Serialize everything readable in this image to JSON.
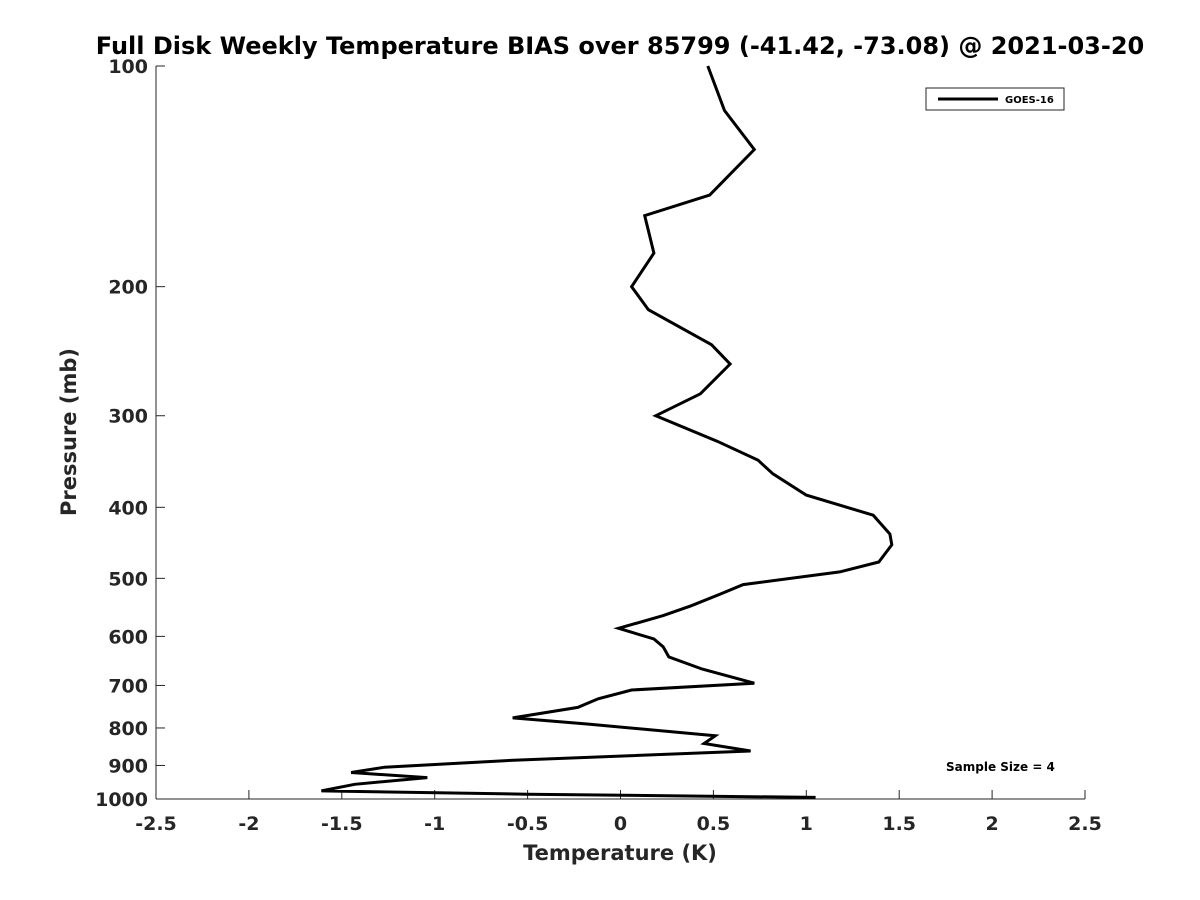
{
  "chart_data": {
    "type": "line",
    "title": "Full Disk Weekly Temperature BIAS over 85799 (-41.42, -73.08) @ 2021-03-20",
    "xlabel": "Temperature (K)",
    "ylabel": "Pressure (mb)",
    "xlim": [
      -2.5,
      2.5
    ],
    "ylim": [
      100,
      1000
    ],
    "y_scale": "log",
    "y_reversed": true,
    "x_ticks": [
      -2.5,
      -2,
      -1.5,
      -1,
      -0.5,
      0,
      0.5,
      1,
      1.5,
      2,
      2.5
    ],
    "x_tick_labels": [
      "-2.5",
      "-2",
      "-1.5",
      "-1",
      "-0.5",
      "0",
      "0.5",
      "1",
      "1.5",
      "2",
      "2.5"
    ],
    "y_ticks": [
      100,
      200,
      300,
      400,
      500,
      600,
      700,
      800,
      900,
      1000
    ],
    "y_tick_labels": [
      "100",
      "200",
      "300",
      "400",
      "500",
      "600",
      "700",
      "800",
      "900",
      "1000"
    ],
    "grid": false,
    "legend_position": "top-right",
    "series": [
      {
        "name": "GOES-16",
        "color": "#000000",
        "x": [
          0.47,
          0.56,
          0.72,
          0.48,
          0.13,
          0.18,
          0.06,
          0.15,
          0.49,
          0.59,
          0.43,
          0.19,
          0.52,
          0.74,
          0.82,
          1.0,
          1.36,
          1.45,
          1.46,
          1.39,
          1.18,
          0.66,
          0.54,
          0.38,
          0.23,
          -0.01,
          0.18,
          0.23,
          0.26,
          0.44,
          0.72,
          0.06,
          -0.12,
          -0.23,
          -0.58,
          -0.18,
          0.51,
          0.45,
          0.7,
          -0.56,
          -1.27,
          -1.45,
          -1.04,
          -1.43,
          -1.61,
          -0.5,
          1.05
        ],
        "y": [
          100,
          115,
          130,
          150,
          160,
          180,
          200,
          215,
          240,
          255,
          280,
          300,
          325,
          345,
          360,
          385,
          410,
          435,
          450,
          475,
          490,
          510,
          525,
          545,
          562,
          585,
          605,
          620,
          640,
          665,
          695,
          710,
          730,
          750,
          775,
          790,
          820,
          840,
          860,
          885,
          905,
          920,
          935,
          955,
          975,
          985,
          995
        ]
      }
    ],
    "annotations": [
      {
        "text": "Sample Size = 4"
      }
    ]
  }
}
